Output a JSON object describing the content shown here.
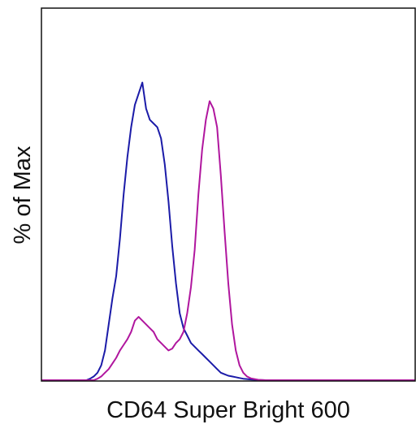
{
  "chart_data": {
    "type": "line",
    "title": "",
    "xlabel": "CD64 Super Bright 600",
    "ylabel": "% of Max",
    "xlim": [
      0,
      100
    ],
    "ylim": [
      0,
      100
    ],
    "grid": false,
    "legend": "none",
    "x_ticks": [],
    "y_ticks": [],
    "series": [
      {
        "color": "#1b1ba8",
        "x": [
          0,
          12,
          13,
          14,
          15,
          16,
          17,
          18,
          19,
          20,
          21,
          22,
          23,
          24,
          25,
          26,
          27,
          28,
          29,
          30,
          31,
          32,
          33,
          34,
          35,
          36,
          37,
          38,
          39,
          40,
          41,
          42,
          43,
          44,
          45,
          46,
          47,
          48,
          49,
          50,
          51,
          52,
          53,
          54,
          55,
          56,
          57,
          58,
          60,
          100
        ],
        "y": [
          0,
          0,
          0.4,
          1,
          2,
          4,
          8,
          15,
          22,
          28,
          38,
          50,
          60,
          68,
          74,
          77,
          80,
          73,
          70,
          69,
          68,
          65,
          58,
          48,
          36,
          26,
          18,
          14,
          12,
          10,
          9,
          8,
          7,
          6,
          5,
          4,
          3,
          2,
          1.6,
          1.2,
          1,
          0.8,
          0.6,
          0.4,
          0.3,
          0.2,
          0.1,
          0.05,
          0,
          0
        ]
      },
      {
        "color": "#b0169e",
        "x": [
          0,
          14,
          15,
          16,
          17,
          18,
          19,
          20,
          21,
          22,
          23,
          24,
          25,
          26,
          27,
          28,
          29,
          30,
          31,
          32,
          33,
          34,
          35,
          36,
          37,
          38,
          39,
          40,
          41,
          42,
          43,
          44,
          45,
          46,
          47,
          48,
          49,
          50,
          51,
          52,
          53,
          54,
          55,
          56,
          58,
          60,
          100
        ],
        "y": [
          0,
          0,
          0.4,
          1,
          2,
          3,
          4.5,
          6,
          8,
          9.5,
          11,
          13,
          16,
          17,
          16,
          15,
          14,
          13,
          11,
          10,
          9,
          8,
          8.5,
          10,
          11,
          13,
          18,
          25,
          35,
          50,
          62,
          70,
          75,
          73,
          68,
          55,
          40,
          26,
          15,
          8,
          4,
          2,
          1,
          0.5,
          0.1,
          0,
          0
        ]
      }
    ]
  }
}
